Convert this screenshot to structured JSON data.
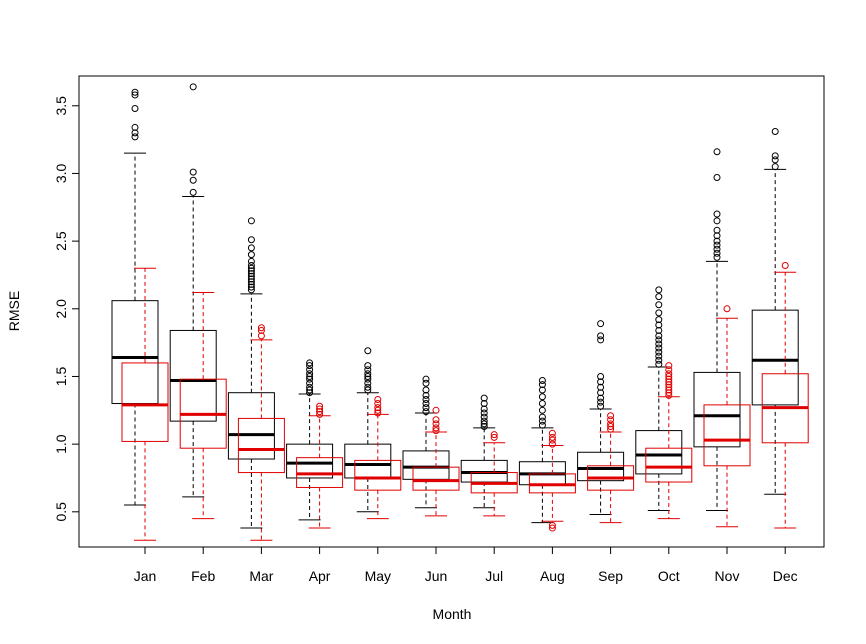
{
  "chart_data": {
    "type": "boxplot",
    "title": "",
    "xlabel": "Month",
    "ylabel": "RMSE",
    "ylim": [
      0.24,
      3.72
    ],
    "yticks": [
      0.5,
      1.0,
      1.5,
      2.0,
      2.5,
      3.0,
      3.5
    ],
    "ytick_labels": [
      "0.5",
      "1.0",
      "1.5",
      "2.0",
      "2.5",
      "3.0",
      "3.5"
    ],
    "categories": [
      "Jan",
      "Feb",
      "Mar",
      "Apr",
      "May",
      "Jun",
      "Jul",
      "Aug",
      "Sep",
      "Oct",
      "Nov",
      "Dec"
    ],
    "grid": false,
    "legend": "none",
    "series": [
      {
        "color": "#000000",
        "boxes": [
          {
            "min": 0.55,
            "q1": 1.3,
            "median": 1.64,
            "q3": 2.06,
            "max": 3.15,
            "outliers": [
              3.27,
              3.3,
              3.34,
              3.48,
              3.58,
              3.6
            ]
          },
          {
            "min": 0.61,
            "q1": 1.17,
            "median": 1.47,
            "q3": 1.84,
            "max": 2.83,
            "outliers": [
              2.86,
              2.95,
              3.01,
              3.64
            ]
          },
          {
            "min": 0.38,
            "q1": 0.89,
            "median": 1.07,
            "q3": 1.38,
            "max": 2.11,
            "outliers": [
              2.14,
              2.16,
              2.18,
              2.2,
              2.22,
              2.24,
              2.26,
              2.28,
              2.3,
              2.32,
              2.35,
              2.4,
              2.45,
              2.51,
              2.65
            ]
          },
          {
            "min": 0.44,
            "q1": 0.75,
            "median": 0.86,
            "q3": 1.0,
            "max": 1.37,
            "outliers": [
              1.38,
              1.4,
              1.42,
              1.45,
              1.48,
              1.5,
              1.52,
              1.55,
              1.58,
              1.6
            ]
          },
          {
            "min": 0.5,
            "q1": 0.75,
            "median": 0.85,
            "q3": 1.0,
            "max": 1.38,
            "outliers": [
              1.4,
              1.42,
              1.45,
              1.48,
              1.5,
              1.52,
              1.55,
              1.58,
              1.69
            ]
          },
          {
            "min": 0.53,
            "q1": 0.74,
            "median": 0.83,
            "q3": 0.95,
            "max": 1.23,
            "outliers": [
              1.24,
              1.27,
              1.3,
              1.33,
              1.36,
              1.4,
              1.45,
              1.48
            ]
          },
          {
            "min": 0.53,
            "q1": 0.72,
            "median": 0.79,
            "q3": 0.88,
            "max": 1.12,
            "outliers": [
              1.13,
              1.15,
              1.17,
              1.2,
              1.23,
              1.26,
              1.3,
              1.34
            ]
          },
          {
            "min": 0.42,
            "q1": 0.7,
            "median": 0.78,
            "q3": 0.87,
            "max": 1.12,
            "outliers": [
              1.14,
              1.17,
              1.2,
              1.25,
              1.3,
              1.35,
              1.4,
              1.44,
              1.47
            ]
          },
          {
            "min": 0.48,
            "q1": 0.73,
            "median": 0.82,
            "q3": 0.94,
            "max": 1.26,
            "outliers": [
              1.28,
              1.31,
              1.34,
              1.38,
              1.42,
              1.46,
              1.5,
              1.77,
              1.8,
              1.89
            ]
          },
          {
            "min": 0.51,
            "q1": 0.78,
            "median": 0.92,
            "q3": 1.1,
            "max": 1.57,
            "outliers": [
              1.59,
              1.62,
              1.65,
              1.68,
              1.71,
              1.74,
              1.77,
              1.8,
              1.84,
              1.88,
              1.92,
              1.97,
              2.03,
              2.09,
              2.14
            ]
          },
          {
            "min": 0.51,
            "q1": 0.98,
            "median": 1.21,
            "q3": 1.53,
            "max": 2.35,
            "outliers": [
              2.38,
              2.41,
              2.44,
              2.47,
              2.5,
              2.54,
              2.58,
              2.65,
              2.7,
              2.97,
              3.16
            ]
          },
          {
            "min": 0.63,
            "q1": 1.29,
            "median": 1.62,
            "q3": 1.99,
            "max": 3.03,
            "outliers": [
              3.05,
              3.1,
              3.13,
              3.31
            ]
          }
        ]
      },
      {
        "color": "#e00000",
        "boxes": [
          {
            "min": 0.29,
            "q1": 1.02,
            "median": 1.29,
            "q3": 1.6,
            "max": 2.3,
            "outliers": []
          },
          {
            "min": 0.45,
            "q1": 0.97,
            "median": 1.22,
            "q3": 1.48,
            "max": 2.12,
            "outliers": []
          },
          {
            "min": 0.29,
            "q1": 0.79,
            "median": 0.96,
            "q3": 1.19,
            "max": 1.77,
            "outliers": [
              1.8,
              1.84,
              1.86
            ]
          },
          {
            "min": 0.38,
            "q1": 0.68,
            "median": 0.78,
            "q3": 0.9,
            "max": 1.21,
            "outliers": [
              1.22,
              1.24,
              1.26,
              1.28
            ]
          },
          {
            "min": 0.45,
            "q1": 0.66,
            "median": 0.75,
            "q3": 0.88,
            "max": 1.22,
            "outliers": [
              1.23,
              1.25,
              1.27,
              1.3,
              1.33
            ]
          },
          {
            "min": 0.47,
            "q1": 0.66,
            "median": 0.73,
            "q3": 0.83,
            "max": 1.09,
            "outliers": [
              1.1,
              1.12,
              1.15,
              1.18,
              1.25
            ]
          },
          {
            "min": 0.47,
            "q1": 0.64,
            "median": 0.71,
            "q3": 0.79,
            "max": 1.01,
            "outliers": [
              1.05,
              1.07
            ]
          },
          {
            "min": 0.43,
            "q1": 0.64,
            "median": 0.7,
            "q3": 0.78,
            "max": 0.99,
            "outliers": [
              0.38,
              0.4,
              1.0,
              1.03,
              1.05,
              1.08
            ]
          },
          {
            "min": 0.42,
            "q1": 0.66,
            "median": 0.75,
            "q3": 0.84,
            "max": 1.09,
            "outliers": [
              1.11,
              1.13,
              1.15,
              1.18,
              1.21
            ]
          },
          {
            "min": 0.45,
            "q1": 0.72,
            "median": 0.83,
            "q3": 0.97,
            "max": 1.35,
            "outliers": [
              1.36,
              1.38,
              1.4,
              1.42,
              1.44,
              1.46,
              1.48,
              1.5,
              1.52,
              1.55,
              1.58
            ]
          },
          {
            "min": 0.39,
            "q1": 0.84,
            "median": 1.03,
            "q3": 1.29,
            "max": 1.93,
            "outliers": [
              2.0
            ]
          },
          {
            "min": 0.38,
            "q1": 1.01,
            "median": 1.27,
            "q3": 1.52,
            "max": 2.27,
            "outliers": [
              2.32
            ]
          }
        ]
      }
    ]
  }
}
